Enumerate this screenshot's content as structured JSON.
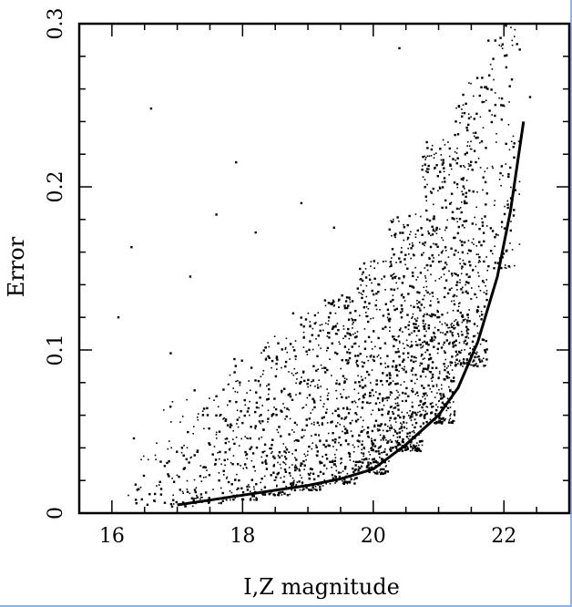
{
  "chart_data": {
    "type": "scatter",
    "title": "",
    "xlabel": "I,Z magnitude",
    "ylabel": "Error",
    "xlim": [
      15.5,
      23.0
    ],
    "ylim": [
      0,
      0.3
    ],
    "x_ticks": [
      16,
      18,
      20,
      22
    ],
    "x_tick_labels": [
      "16",
      "18",
      "20",
      "22"
    ],
    "y_ticks": [
      0,
      0.1,
      0.2,
      0.3
    ],
    "y_tick_labels": [
      "0",
      "0.1",
      "0.2",
      "0.3"
    ],
    "x_minor_step": 0.5,
    "y_minor_step": 0.02,
    "grid": false,
    "scatter_color": "#000000",
    "envelope_curve": {
      "x": [
        17.0,
        17.5,
        18.0,
        18.5,
        19.0,
        19.5,
        20.0,
        20.5,
        21.0,
        21.3,
        21.6,
        21.9,
        22.1,
        22.3
      ],
      "y": [
        0.005,
        0.008,
        0.011,
        0.014,
        0.017,
        0.021,
        0.027,
        0.042,
        0.06,
        0.077,
        0.105,
        0.145,
        0.185,
        0.24
      ]
    },
    "point_density": [
      {
        "x": 16.5,
        "y_min": 0.004,
        "y_max": 0.055,
        "count": 25
      },
      {
        "x": 17.0,
        "y_min": 0.004,
        "y_max": 0.07,
        "count": 55
      },
      {
        "x": 17.5,
        "y_min": 0.006,
        "y_max": 0.08,
        "count": 90
      },
      {
        "x": 18.0,
        "y_min": 0.008,
        "y_max": 0.095,
        "count": 130
      },
      {
        "x": 18.5,
        "y_min": 0.011,
        "y_max": 0.11,
        "count": 170
      },
      {
        "x": 19.0,
        "y_min": 0.014,
        "y_max": 0.125,
        "count": 210
      },
      {
        "x": 19.5,
        "y_min": 0.018,
        "y_max": 0.135,
        "count": 260
      },
      {
        "x": 20.0,
        "y_min": 0.024,
        "y_max": 0.155,
        "count": 320
      },
      {
        "x": 20.5,
        "y_min": 0.038,
        "y_max": 0.185,
        "count": 400
      },
      {
        "x": 21.0,
        "y_min": 0.055,
        "y_max": 0.23,
        "count": 430
      },
      {
        "x": 21.5,
        "y_min": 0.09,
        "y_max": 0.27,
        "count": 330
      },
      {
        "x": 22.0,
        "y_min": 0.15,
        "y_max": 0.3,
        "count": 110
      }
    ],
    "outliers": [
      {
        "x": 16.1,
        "y": 0.12
      },
      {
        "x": 16.6,
        "y": 0.248
      },
      {
        "x": 17.2,
        "y": 0.145
      },
      {
        "x": 17.6,
        "y": 0.183
      },
      {
        "x": 18.2,
        "y": 0.172
      },
      {
        "x": 16.9,
        "y": 0.098
      },
      {
        "x": 18.9,
        "y": 0.19
      },
      {
        "x": 19.4,
        "y": 0.175
      },
      {
        "x": 16.3,
        "y": 0.163
      },
      {
        "x": 17.9,
        "y": 0.215
      },
      {
        "x": 20.4,
        "y": 0.285
      },
      {
        "x": 22.4,
        "y": 0.255
      }
    ]
  }
}
